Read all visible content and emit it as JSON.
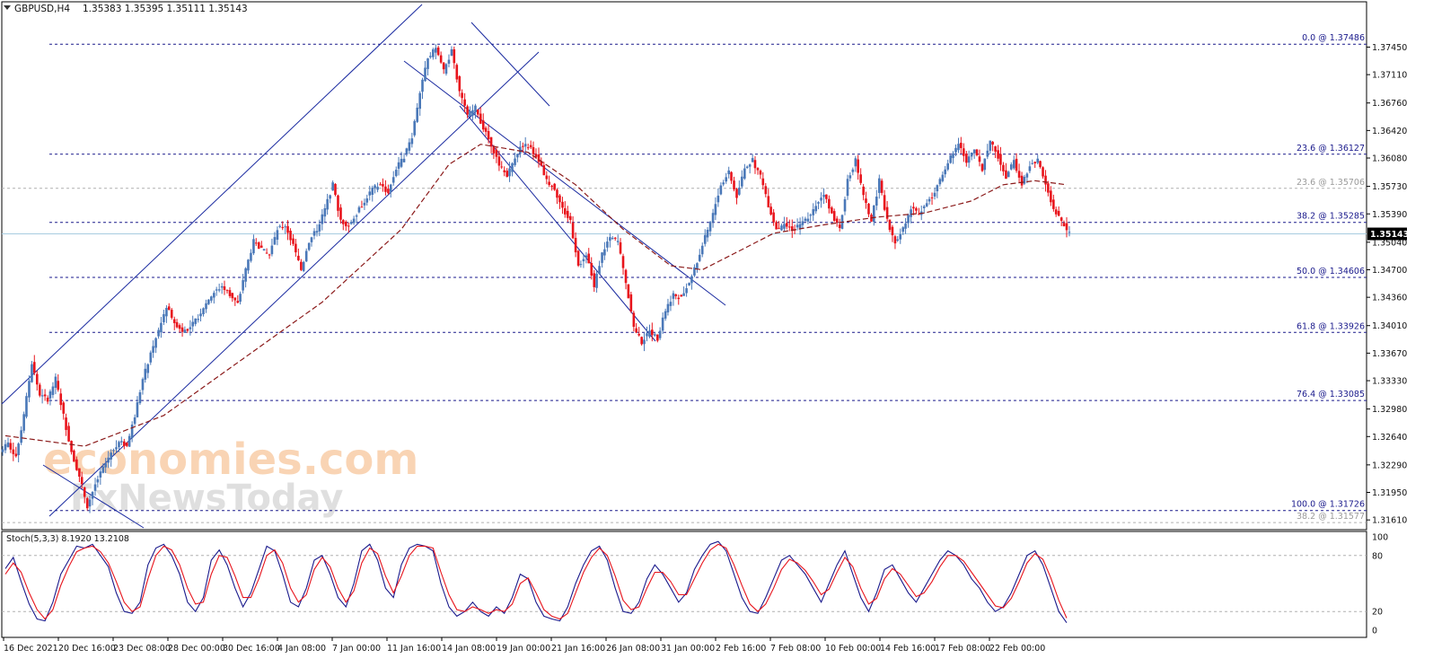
{
  "header": {
    "symbol": "GBPUSD,H4",
    "ohlc": "1.35383 1.35395 1.35111 1.35143"
  },
  "watermark": {
    "line1": "economies.com",
    "line2": "FxNewsToday"
  },
  "colors": {
    "bull": "#4a78b8",
    "bear": "#e8141c",
    "fib": "#1a1a8c",
    "channel": "#1a2aa0",
    "ma": "#8b1a1a",
    "stoch_main": "#1a1a8c",
    "stoch_signal": "#e8141c",
    "current_price": "#a8cce0"
  },
  "chart_data": [
    {
      "type": "candlestick",
      "timeframe": "H4",
      "y_axis_ticks": [
        "1.37450",
        "1.37110",
        "1.36760",
        "1.36420",
        "1.36080",
        "1.35730",
        "1.35390",
        "1.35040",
        "1.34700",
        "1.34360",
        "1.34010",
        "1.33670",
        "1.33330",
        "1.32980",
        "1.32640",
        "1.32290",
        "1.31950",
        "1.31610"
      ],
      "ylim": [
        1.3149,
        1.3781
      ],
      "x_axis_labels": [
        "16 Dec 2021",
        "20 Dec 16:00",
        "23 Dec 08:00",
        "28 Dec 00:00",
        "30 Dec 16:00",
        "4 Jan 08:00",
        "7 Jan 00:00",
        "11 Jan 16:00",
        "14 Jan 08:00",
        "19 Jan 00:00",
        "21 Jan 16:00",
        "26 Jan 08:00",
        "31 Jan 00:00",
        "2 Feb 16:00",
        "7 Feb 08:00",
        "10 Feb 00:00",
        "14 Feb 16:00",
        "17 Feb 08:00",
        "22 Feb 00:00"
      ],
      "current_price": "1.35143",
      "fib_levels": [
        {
          "label": "0.0 @ 1.37486",
          "price": 1.37486
        },
        {
          "label": "23.6 @ 1.36127",
          "price": 1.36127
        },
        {
          "label": "38.2 @ 1.35285",
          "price": 1.35285
        },
        {
          "label": "50.0 @ 1.34606",
          "price": 1.34606
        },
        {
          "label": "61.8 @ 1.33926",
          "price": 1.33926
        },
        {
          "label": "76.4 @ 1.33085",
          "price": 1.33085
        },
        {
          "label": "100.0 @ 1.31726",
          "price": 1.31726
        }
      ],
      "secondary_fib_levels": [
        {
          "label": "23.6 @ 1.35706",
          "price": 1.35706
        },
        {
          "label": "38.2 @ 1.31577",
          "price": 1.31577
        }
      ],
      "price_path": [
        [
          0,
          1.3255
        ],
        [
          1,
          1.324
        ],
        [
          2,
          1.329
        ],
        [
          3,
          1.3355
        ],
        [
          4,
          1.3315
        ],
        [
          5,
          1.331
        ],
        [
          6,
          1.3335
        ],
        [
          7,
          1.329
        ],
        [
          8,
          1.3245
        ],
        [
          9,
          1.3215
        ],
        [
          10,
          1.3178
        ],
        [
          11,
          1.3205
        ],
        [
          12,
          1.3225
        ],
        [
          13,
          1.3245
        ],
        [
          14,
          1.3258
        ],
        [
          15,
          1.3252
        ],
        [
          16,
          1.329
        ],
        [
          17,
          1.3335
        ],
        [
          18,
          1.3365
        ],
        [
          19,
          1.3395
        ],
        [
          20,
          1.3425
        ],
        [
          21,
          1.3405
        ],
        [
          22,
          1.3395
        ],
        [
          23,
          1.3398
        ],
        [
          24,
          1.3412
        ],
        [
          25,
          1.343
        ],
        [
          26,
          1.3442
        ],
        [
          27,
          1.345
        ],
        [
          28,
          1.344
        ],
        [
          29,
          1.3428
        ],
        [
          30,
          1.347
        ],
        [
          31,
          1.3505
        ],
        [
          32,
          1.3495
        ],
        [
          33,
          1.3488
        ],
        [
          34,
          1.352
        ],
        [
          35,
          1.3525
        ],
        [
          36,
          1.35
        ],
        [
          37,
          1.347
        ],
        [
          38,
          1.3505
        ],
        [
          39,
          1.352
        ],
        [
          40,
          1.3545
        ],
        [
          41,
          1.3575
        ],
        [
          42,
          1.353
        ],
        [
          43,
          1.3525
        ],
        [
          44,
          1.354
        ],
        [
          45,
          1.3555
        ],
        [
          46,
          1.357
        ],
        [
          47,
          1.3575
        ],
        [
          48,
          1.3565
        ],
        [
          49,
          1.3595
        ],
        [
          50,
          1.361
        ],
        [
          51,
          1.3635
        ],
        [
          52,
          1.369
        ],
        [
          53,
          1.373
        ],
        [
          54,
          1.3745
        ],
        [
          55,
          1.3715
        ],
        [
          56,
          1.374
        ],
        [
          57,
          1.369
        ],
        [
          58,
          1.366
        ],
        [
          59,
          1.367
        ],
        [
          60,
          1.3645
        ],
        [
          61,
          1.3625
        ],
        [
          62,
          1.36
        ],
        [
          63,
          1.3585
        ],
        [
          64,
          1.361
        ],
        [
          65,
          1.3625
        ],
        [
          66,
          1.362
        ],
        [
          67,
          1.3605
        ],
        [
          68,
          1.358
        ],
        [
          69,
          1.357
        ],
        [
          70,
          1.3545
        ],
        [
          71,
          1.353
        ],
        [
          72,
          1.3475
        ],
        [
          73,
          1.349
        ],
        [
          74,
          1.345
        ],
        [
          75,
          1.349
        ],
        [
          76,
          1.351
        ],
        [
          77,
          1.3505
        ],
        [
          78,
          1.3455
        ],
        [
          79,
          1.34
        ],
        [
          80,
          1.338
        ],
        [
          81,
          1.3395
        ],
        [
          82,
          1.3385
        ],
        [
          83,
          1.342
        ],
        [
          84,
          1.344
        ],
        [
          85,
          1.3435
        ],
        [
          86,
          1.3455
        ],
        [
          87,
          1.348
        ],
        [
          88,
          1.351
        ],
        [
          89,
          1.354
        ],
        [
          90,
          1.3575
        ],
        [
          91,
          1.359
        ],
        [
          92,
          1.356
        ],
        [
          93,
          1.3595
        ],
        [
          94,
          1.3605
        ],
        [
          95,
          1.3585
        ],
        [
          96,
          1.355
        ],
        [
          97,
          1.352
        ],
        [
          98,
          1.3525
        ],
        [
          99,
          1.352
        ],
        [
          100,
          1.3525
        ],
        [
          101,
          1.3535
        ],
        [
          102,
          1.355
        ],
        [
          103,
          1.3565
        ],
        [
          104,
          1.354
        ],
        [
          105,
          1.352
        ],
        [
          106,
          1.358
        ],
        [
          107,
          1.3605
        ],
        [
          108,
          1.356
        ],
        [
          109,
          1.353
        ],
        [
          110,
          1.358
        ],
        [
          111,
          1.353
        ],
        [
          112,
          1.3505
        ],
        [
          113,
          1.352
        ],
        [
          114,
          1.3545
        ],
        [
          115,
          1.354
        ],
        [
          116,
          1.3555
        ],
        [
          117,
          1.3565
        ],
        [
          118,
          1.359
        ],
        [
          119,
          1.361
        ],
        [
          120,
          1.3625
        ],
        [
          121,
          1.3605
        ],
        [
          122,
          1.362
        ],
        [
          123,
          1.3595
        ],
        [
          124,
          1.363
        ],
        [
          125,
          1.361
        ],
        [
          126,
          1.3585
        ],
        [
          127,
          1.3605
        ],
        [
          128,
          1.3575
        ],
        [
          129,
          1.36
        ],
        [
          130,
          1.3605
        ],
        [
          131,
          1.3575
        ],
        [
          132,
          1.3545
        ],
        [
          133,
          1.353
        ],
        [
          134,
          1.3514
        ]
      ],
      "ma_path": [
        [
          0,
          1.3265
        ],
        [
          10,
          1.3252
        ],
        [
          20,
          1.329
        ],
        [
          30,
          1.336
        ],
        [
          40,
          1.343
        ],
        [
          50,
          1.352
        ],
        [
          56,
          1.36
        ],
        [
          60,
          1.3625
        ],
        [
          66,
          1.3615
        ],
        [
          72,
          1.3575
        ],
        [
          78,
          1.352
        ],
        [
          84,
          1.3475
        ],
        [
          88,
          1.347
        ],
        [
          92,
          1.349
        ],
        [
          97,
          1.3515
        ],
        [
          103,
          1.3525
        ],
        [
          110,
          1.3535
        ],
        [
          116,
          1.354
        ],
        [
          122,
          1.3555
        ],
        [
          126,
          1.3575
        ],
        [
          130,
          1.358
        ],
        [
          134,
          1.3575
        ]
      ]
    },
    {
      "type": "line",
      "title": "Stoch(5,3,3) 8.1920 13.2108",
      "y_axis_ticks": [
        "100",
        "80",
        "20",
        "0"
      ],
      "ylim": [
        0,
        100
      ],
      "levels": [
        80,
        20
      ],
      "series": [
        {
          "name": "main",
          "values": [
            66,
            78,
            52,
            28,
            12,
            10,
            30,
            60,
            75,
            90,
            88,
            92,
            80,
            68,
            40,
            20,
            18,
            30,
            70,
            88,
            92,
            80,
            60,
            30,
            20,
            35,
            75,
            86,
            70,
            45,
            25,
            40,
            65,
            90,
            85,
            60,
            30,
            25,
            45,
            75,
            80,
            60,
            35,
            25,
            50,
            85,
            92,
            75,
            45,
            35,
            70,
            88,
            92,
            90,
            85,
            50,
            25,
            15,
            20,
            30,
            20,
            15,
            25,
            18,
            35,
            60,
            55,
            30,
            15,
            12,
            10,
            25,
            50,
            70,
            85,
            90,
            75,
            45,
            20,
            18,
            30,
            55,
            70,
            60,
            45,
            30,
            40,
            65,
            80,
            92,
            95,
            85,
            60,
            35,
            20,
            18,
            35,
            55,
            75,
            80,
            70,
            60,
            45,
            30,
            50,
            70,
            85,
            60,
            35,
            20,
            40,
            65,
            70,
            55,
            40,
            30,
            45,
            60,
            75,
            85,
            80,
            70,
            55,
            45,
            30,
            20,
            25,
            40,
            60,
            80,
            85,
            70,
            45,
            20,
            8
          ]
        },
        {
          "name": "signal",
          "values": [
            60,
            72,
            62,
            40,
            22,
            12,
            22,
            48,
            68,
            84,
            88,
            90,
            84,
            72,
            52,
            30,
            20,
            25,
            55,
            80,
            90,
            86,
            70,
            45,
            28,
            30,
            60,
            80,
            78,
            58,
            35,
            35,
            55,
            80,
            86,
            72,
            45,
            30,
            38,
            65,
            78,
            68,
            45,
            30,
            42,
            72,
            88,
            82,
            58,
            40,
            58,
            80,
            90,
            90,
            88,
            62,
            38,
            22,
            20,
            25,
            22,
            18,
            22,
            20,
            28,
            50,
            56,
            40,
            22,
            15,
            12,
            18,
            40,
            62,
            78,
            88,
            80,
            58,
            32,
            22,
            25,
            45,
            62,
            62,
            52,
            38,
            38,
            55,
            72,
            86,
            92,
            88,
            70,
            48,
            28,
            20,
            28,
            45,
            65,
            76,
            72,
            64,
            52,
            38,
            44,
            62,
            78,
            68,
            45,
            28,
            34,
            55,
            66,
            60,
            48,
            36,
            40,
            52,
            68,
            80,
            80,
            74,
            62,
            50,
            38,
            26,
            24,
            34,
            52,
            72,
            82,
            76,
            56,
            32,
            13
          ]
        }
      ]
    }
  ]
}
